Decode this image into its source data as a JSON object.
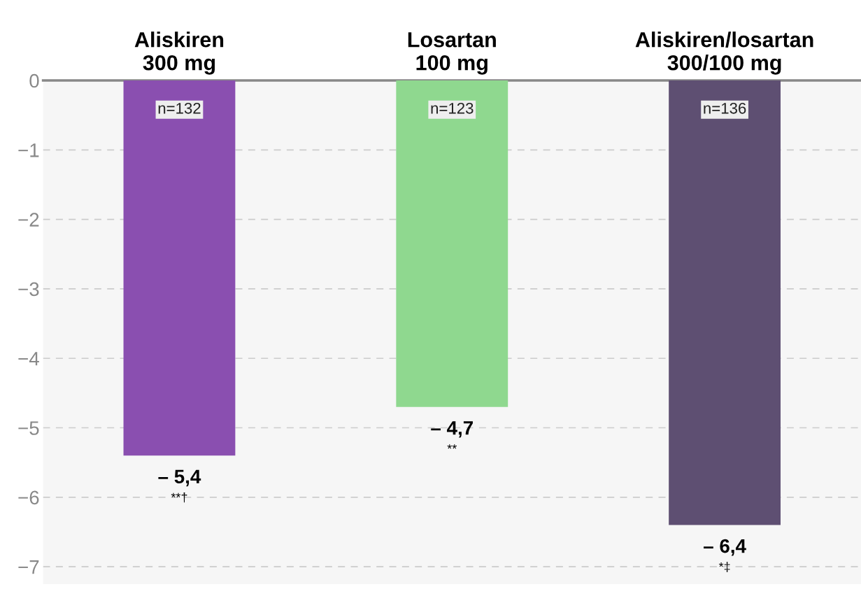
{
  "chart_data": {
    "type": "bar",
    "categories": [
      "Aliskiren\n300 mg",
      "Losartan\n100 mg",
      "Aliskiren/losartan\n300/100 mg"
    ],
    "values": [
      -5.4,
      -4.7,
      -6.4
    ],
    "colors": [
      "#8a4fb0",
      "#8fd88f",
      "#5e4f72"
    ],
    "value_labels": [
      "– 5,4\n**†",
      "– 4,7\n**",
      "– 6,4\n*‡"
    ],
    "ylim": [
      -7.25,
      0
    ],
    "yticks": [
      {
        "value": 0,
        "label": "0"
      },
      {
        "value": -1,
        "label": "−1"
      },
      {
        "value": -2,
        "label": "−2"
      },
      {
        "value": -3,
        "label": "−3"
      },
      {
        "value": -4,
        "label": "−4"
      },
      {
        "value": -5,
        "label": "−5"
      },
      {
        "value": -6,
        "label": "−6"
      },
      {
        "value": -7,
        "label": "−7"
      }
    ],
    "grid": "y",
    "annotations": [
      "n=132",
      "n=123",
      "n=136"
    ]
  }
}
